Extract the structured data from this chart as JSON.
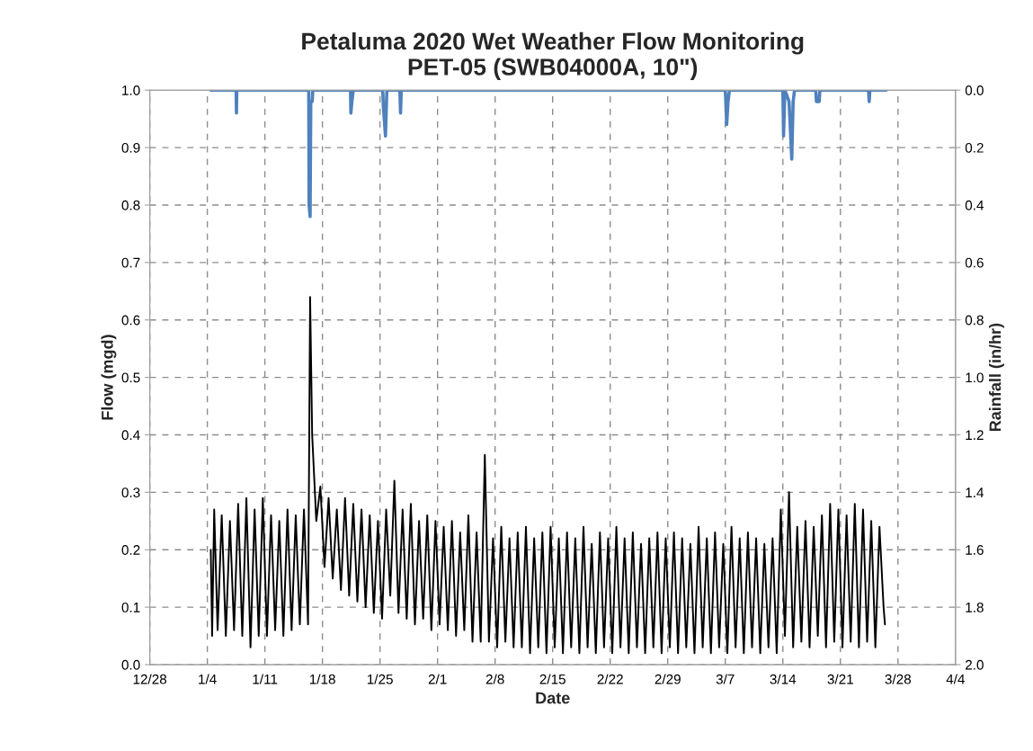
{
  "chart_data": {
    "type": "line",
    "title": "Petaluma 2020 Wet Weather Flow Monitoring\nPET-05 (SWB04000A, 10\")",
    "xlabel": "Date",
    "ylabel": "Flow (mgd)",
    "y2label": "Rainfall (in/hr)",
    "xlim": [
      "2019-12-28",
      "2020-04-04"
    ],
    "xticks": [
      {
        "value": "2019-12-28",
        "label": "12/28"
      },
      {
        "value": "2020-01-04",
        "label": "1/4"
      },
      {
        "value": "2020-01-11",
        "label": "1/11"
      },
      {
        "value": "2020-01-18",
        "label": "1/18"
      },
      {
        "value": "2020-01-25",
        "label": "1/25"
      },
      {
        "value": "2020-02-01",
        "label": "2/1"
      },
      {
        "value": "2020-02-08",
        "label": "2/8"
      },
      {
        "value": "2020-02-15",
        "label": "2/15"
      },
      {
        "value": "2020-02-22",
        "label": "2/22"
      },
      {
        "value": "2020-02-29",
        "label": "2/29"
      },
      {
        "value": "2020-03-07",
        "label": "3/7"
      },
      {
        "value": "2020-03-14",
        "label": "3/14"
      },
      {
        "value": "2020-03-21",
        "label": "3/21"
      },
      {
        "value": "2020-03-28",
        "label": "3/28"
      },
      {
        "value": "2020-04-04",
        "label": "4/4"
      }
    ],
    "ylim": [
      0,
      1
    ],
    "yticks": [
      {
        "value": 0,
        "label": "0.0"
      },
      0.1,
      0.2,
      0.3,
      0.4,
      0.5,
      0.6,
      0.7,
      0.8,
      0.9,
      {
        "value": 1,
        "label": "1.0"
      }
    ],
    "y2lim": [
      2,
      0
    ],
    "y2ticks": [
      {
        "value": 2,
        "label": "2.0"
      },
      1.8,
      1.6,
      1.4,
      1.2,
      {
        "value": 1,
        "label": "1.0"
      },
      0.8,
      0.6,
      0.4,
      0.2,
      {
        "value": 0,
        "label": "0.0"
      }
    ],
    "grid": true,
    "line_style": "solid",
    "marker": "none",
    "series": [
      {
        "color": "#000000",
        "x": [
          "2020-01-04T10:00",
          "2020-01-04T14:00",
          "2020-01-04T20:00",
          "2020-01-05T06:00",
          "2020-01-05T18:00",
          "2020-01-06T06:00",
          "2020-01-06T18:00",
          "2020-01-07T06:00",
          "2020-01-07T18:00",
          "2020-01-08T06:00",
          "2020-01-08T18:00",
          "2020-01-09T06:00",
          "2020-01-09T18:00",
          "2020-01-10T06:00",
          "2020-01-10T18:00",
          "2020-01-11T06:00",
          "2020-01-11T18:00",
          "2020-01-12T06:00",
          "2020-01-12T18:00",
          "2020-01-13T06:00",
          "2020-01-13T18:00",
          "2020-01-14T06:00",
          "2020-01-14T18:00",
          "2020-01-15T06:00",
          "2020-01-15T18:00",
          "2020-01-16T06:00",
          "2020-01-16T12:00",
          "2020-01-16T18:00",
          "2020-01-17T06:00",
          "2020-01-17T18:00",
          "2020-01-18T06:00",
          "2020-01-18T18:00",
          "2020-01-19T06:00",
          "2020-01-19T18:00",
          "2020-01-20T06:00",
          "2020-01-20T18:00",
          "2020-01-21T06:00",
          "2020-01-21T18:00",
          "2020-01-22T06:00",
          "2020-01-22T18:00",
          "2020-01-23T06:00",
          "2020-01-23T18:00",
          "2020-01-24T06:00",
          "2020-01-24T18:00",
          "2020-01-25T06:00",
          "2020-01-25T18:00",
          "2020-01-26T06:00",
          "2020-01-26T18:00",
          "2020-01-27T06:00",
          "2020-01-27T18:00",
          "2020-01-28T06:00",
          "2020-01-28T18:00",
          "2020-01-29T06:00",
          "2020-01-29T18:00",
          "2020-01-30T06:00",
          "2020-01-30T18:00",
          "2020-01-31T06:00",
          "2020-01-31T18:00",
          "2020-02-01T06:00",
          "2020-02-01T18:00",
          "2020-02-02T06:00",
          "2020-02-02T18:00",
          "2020-02-03T06:00",
          "2020-02-03T18:00",
          "2020-02-04T06:00",
          "2020-02-04T18:00",
          "2020-02-05T06:00",
          "2020-02-05T18:00",
          "2020-02-06T06:00",
          "2020-02-06T18:00",
          "2020-02-07T06:00",
          "2020-02-07T18:00",
          "2020-02-08T06:00",
          "2020-02-08T18:00",
          "2020-02-09T06:00",
          "2020-02-09T18:00",
          "2020-02-10T06:00",
          "2020-02-10T18:00",
          "2020-02-11T06:00",
          "2020-02-11T18:00",
          "2020-02-12T06:00",
          "2020-02-12T18:00",
          "2020-02-13T06:00",
          "2020-02-13T18:00",
          "2020-02-14T06:00",
          "2020-02-14T18:00",
          "2020-02-15T06:00",
          "2020-02-15T18:00",
          "2020-02-16T06:00",
          "2020-02-16T18:00",
          "2020-02-17T06:00",
          "2020-02-17T18:00",
          "2020-02-18T06:00",
          "2020-02-18T18:00",
          "2020-02-19T06:00",
          "2020-02-19T18:00",
          "2020-02-20T06:00",
          "2020-02-20T18:00",
          "2020-02-21T06:00",
          "2020-02-21T18:00",
          "2020-02-22T06:00",
          "2020-02-22T18:00",
          "2020-02-23T06:00",
          "2020-02-23T18:00",
          "2020-02-24T06:00",
          "2020-02-24T18:00",
          "2020-02-25T06:00",
          "2020-02-25T18:00",
          "2020-02-26T06:00",
          "2020-02-26T18:00",
          "2020-02-27T06:00",
          "2020-02-27T18:00",
          "2020-02-28T06:00",
          "2020-02-28T18:00",
          "2020-02-29T06:00",
          "2020-02-29T18:00",
          "2020-03-01T06:00",
          "2020-03-01T18:00",
          "2020-03-02T06:00",
          "2020-03-02T18:00",
          "2020-03-03T06:00",
          "2020-03-03T18:00",
          "2020-03-04T06:00",
          "2020-03-04T18:00",
          "2020-03-05T06:00",
          "2020-03-05T18:00",
          "2020-03-06T06:00",
          "2020-03-06T18:00",
          "2020-03-07T06:00",
          "2020-03-07T18:00",
          "2020-03-08T06:00",
          "2020-03-08T18:00",
          "2020-03-09T06:00",
          "2020-03-09T18:00",
          "2020-03-10T06:00",
          "2020-03-10T18:00",
          "2020-03-11T06:00",
          "2020-03-11T18:00",
          "2020-03-12T06:00",
          "2020-03-12T18:00",
          "2020-03-13T06:00",
          "2020-03-13T18:00",
          "2020-03-14T06:00",
          "2020-03-14T18:00",
          "2020-03-15T06:00",
          "2020-03-15T18:00",
          "2020-03-16T06:00",
          "2020-03-16T18:00",
          "2020-03-17T06:00",
          "2020-03-17T18:00",
          "2020-03-18T06:00",
          "2020-03-18T18:00",
          "2020-03-19T06:00",
          "2020-03-19T18:00",
          "2020-03-20T06:00",
          "2020-03-20T18:00",
          "2020-03-21T06:00",
          "2020-03-21T18:00",
          "2020-03-22T06:00",
          "2020-03-22T18:00",
          "2020-03-23T06:00",
          "2020-03-23T18:00",
          "2020-03-24T06:00",
          "2020-03-24T18:00",
          "2020-03-25T06:00",
          "2020-03-25T18:00",
          "2020-03-26T06:00",
          "2020-03-26T10:00"
        ],
        "values": [
          0.2,
          0.05,
          0.27,
          0.06,
          0.26,
          0.05,
          0.25,
          0.06,
          0.28,
          0.05,
          0.29,
          0.03,
          0.27,
          0.05,
          0.29,
          0.05,
          0.26,
          0.06,
          0.25,
          0.05,
          0.27,
          0.06,
          0.26,
          0.07,
          0.27,
          0.07,
          0.64,
          0.4,
          0.25,
          0.31,
          0.17,
          0.29,
          0.15,
          0.27,
          0.13,
          0.29,
          0.12,
          0.28,
          0.11,
          0.27,
          0.1,
          0.26,
          0.09,
          0.25,
          0.08,
          0.27,
          0.12,
          0.32,
          0.09,
          0.27,
          0.08,
          0.28,
          0.07,
          0.25,
          0.08,
          0.26,
          0.06,
          0.25,
          0.07,
          0.24,
          0.06,
          0.25,
          0.05,
          0.23,
          0.06,
          0.26,
          0.04,
          0.23,
          0.04,
          0.365,
          0.04,
          0.22,
          0.03,
          0.24,
          0.04,
          0.22,
          0.03,
          0.23,
          0.03,
          0.24,
          0.02,
          0.22,
          0.03,
          0.23,
          0.02,
          0.24,
          0.03,
          0.22,
          0.02,
          0.23,
          0.03,
          0.22,
          0.02,
          0.24,
          0.03,
          0.21,
          0.02,
          0.23,
          0.03,
          0.22,
          0.02,
          0.24,
          0.03,
          0.22,
          0.02,
          0.23,
          0.03,
          0.21,
          0.02,
          0.22,
          0.03,
          0.23,
          0.02,
          0.22,
          0.03,
          0.23,
          0.02,
          0.22,
          0.03,
          0.21,
          0.02,
          0.24,
          0.03,
          0.22,
          0.02,
          0.23,
          0.03,
          0.21,
          0.02,
          0.24,
          0.03,
          0.22,
          0.02,
          0.23,
          0.03,
          0.22,
          0.02,
          0.21,
          0.03,
          0.22,
          0.02,
          0.27,
          0.05,
          0.3,
          0.03,
          0.24,
          0.04,
          0.25,
          0.03,
          0.24,
          0.05,
          0.26,
          0.03,
          0.28,
          0.04,
          0.27,
          0.03,
          0.26,
          0.04,
          0.28,
          0.03,
          0.27,
          0.04,
          0.25,
          0.03,
          0.24,
          0.1,
          0.07
        ]
      },
      {
        "color": "#4f81bd",
        "axis": "y2",
        "x": [
          "2020-01-04T10:00",
          "2020-01-07T12:00",
          "2020-01-07T13:00",
          "2020-01-07T14:00",
          "2020-01-16T08:00",
          "2020-01-16T09:00",
          "2020-01-16T12:00",
          "2020-01-16T14:00",
          "2020-01-16T18:00",
          "2020-01-16T20:00",
          "2020-01-21T10:00",
          "2020-01-21T11:00",
          "2020-01-21T14:00",
          "2020-01-21T18:00",
          "2020-01-25T08:00",
          "2020-01-25T10:00",
          "2020-01-25T16:00",
          "2020-01-25T20:00",
          "2020-01-27T10:00",
          "2020-01-27T12:00",
          "2020-01-27T14:00",
          "2020-03-07T00:00",
          "2020-03-07T04:00",
          "2020-03-07T08:00",
          "2020-03-07T12:00",
          "2020-03-14T00:00",
          "2020-03-14T02:00",
          "2020-03-14T06:00",
          "2020-03-14T18:00",
          "2020-03-15T02:00",
          "2020-03-15T06:00",
          "2020-03-15T10:00",
          "2020-03-18T00:00",
          "2020-03-18T02:00",
          "2020-03-18T10:00",
          "2020-03-18T12:00",
          "2020-03-24T10:00",
          "2020-03-24T12:00",
          "2020-03-24T14:00",
          "2020-03-26T14:00"
        ],
        "values": [
          0,
          0,
          0.08,
          0,
          0,
          0.4,
          0.44,
          0.04,
          0.04,
          0,
          0,
          0.08,
          0.04,
          0,
          0,
          0.06,
          0.16,
          0,
          0,
          0.08,
          0,
          0,
          0.12,
          0.04,
          0,
          0,
          0.16,
          0,
          0.04,
          0.24,
          0.04,
          0,
          0,
          0.04,
          0.04,
          0,
          0,
          0.04,
          0,
          0
        ]
      }
    ]
  }
}
